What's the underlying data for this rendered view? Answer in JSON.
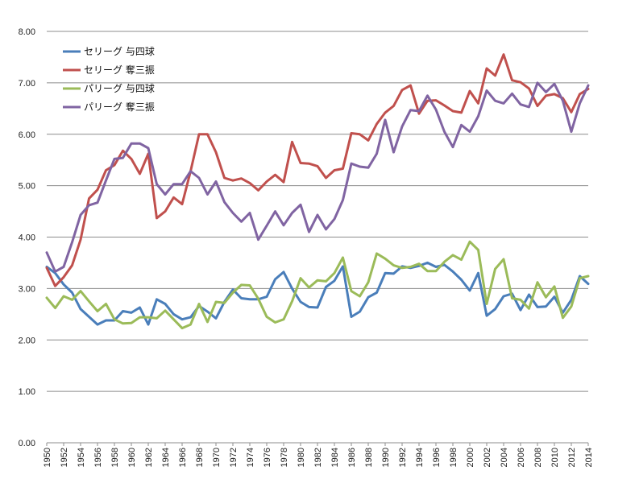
{
  "chart_data": {
    "type": "line",
    "title": "",
    "xlabel": "",
    "ylabel": "",
    "ylim": [
      0,
      8
    ],
    "y_ticks": [
      "0.00",
      "1.00",
      "2.00",
      "3.00",
      "4.00",
      "5.00",
      "6.00",
      "7.00",
      "8.00"
    ],
    "x": [
      1950,
      1951,
      1952,
      1953,
      1954,
      1955,
      1956,
      1957,
      1958,
      1959,
      1960,
      1961,
      1962,
      1963,
      1964,
      1965,
      1966,
      1967,
      1968,
      1969,
      1970,
      1971,
      1972,
      1973,
      1974,
      1975,
      1976,
      1977,
      1978,
      1979,
      1980,
      1981,
      1982,
      1983,
      1984,
      1985,
      1986,
      1987,
      1988,
      1989,
      1990,
      1991,
      1992,
      1993,
      1994,
      1995,
      1996,
      1997,
      1998,
      1999,
      2000,
      2001,
      2002,
      2003,
      2004,
      2005,
      2006,
      2007,
      2008,
      2009,
      2010,
      2011,
      2012,
      2013,
      2014
    ],
    "x_tick_labels": [
      "1950",
      "1952",
      "1954",
      "1956",
      "1958",
      "1960",
      "1962",
      "1964",
      "1966",
      "1968",
      "1970",
      "1972",
      "1974",
      "1976",
      "1978",
      "1980",
      "1982",
      "1984",
      "1986",
      "1988",
      "1990",
      "1992",
      "1994",
      "1996",
      "1998",
      "2000",
      "2002",
      "2004",
      "2006",
      "2008",
      "2010",
      "2012",
      "2014"
    ],
    "grid": "horizontal",
    "legend_position": "top-left",
    "series": [
      {
        "name": "セリーグ 与四球",
        "color": "#4a7eba",
        "values": [
          3.42,
          3.3,
          3.08,
          2.92,
          2.6,
          2.45,
          2.3,
          2.38,
          2.38,
          2.56,
          2.53,
          2.63,
          2.3,
          2.79,
          2.7,
          2.5,
          2.4,
          2.44,
          2.66,
          2.55,
          2.42,
          2.74,
          2.98,
          2.81,
          2.79,
          2.79,
          2.84,
          3.18,
          3.32,
          3.0,
          2.74,
          2.64,
          2.63,
          3.03,
          3.15,
          3.43,
          2.45,
          2.55,
          2.83,
          2.92,
          3.3,
          3.29,
          3.43,
          3.4,
          3.44,
          3.5,
          3.42,
          3.46,
          3.33,
          3.17,
          2.96,
          3.3,
          2.47,
          2.6,
          2.85,
          2.9,
          2.58,
          2.88,
          2.64,
          2.65,
          2.84,
          2.53,
          2.78,
          3.24,
          3.09
        ]
      },
      {
        "name": "セリーグ 奪三振",
        "color": "#c0504d",
        "values": [
          3.4,
          3.05,
          3.22,
          3.45,
          3.95,
          4.75,
          4.92,
          5.3,
          5.4,
          5.68,
          5.52,
          5.23,
          5.62,
          4.37,
          4.5,
          4.77,
          4.64,
          5.28,
          6.0,
          6.0,
          5.65,
          5.15,
          5.1,
          5.14,
          5.05,
          4.91,
          5.08,
          5.21,
          5.07,
          5.85,
          5.44,
          5.43,
          5.38,
          5.15,
          5.3,
          5.33,
          6.02,
          6.0,
          5.88,
          6.2,
          6.42,
          6.55,
          6.86,
          6.95,
          6.4,
          6.65,
          6.66,
          6.56,
          6.45,
          6.42,
          6.84,
          6.6,
          7.28,
          7.14,
          7.55,
          7.05,
          7.01,
          6.89,
          6.55,
          6.75,
          6.78,
          6.7,
          6.43,
          6.78,
          6.88
        ]
      },
      {
        "name": "パリーグ 与四球",
        "color": "#9bbb59",
        "values": [
          2.82,
          2.62,
          2.85,
          2.78,
          2.95,
          2.75,
          2.56,
          2.7,
          2.4,
          2.32,
          2.33,
          2.44,
          2.44,
          2.42,
          2.57,
          2.4,
          2.23,
          2.3,
          2.7,
          2.35,
          2.74,
          2.72,
          2.92,
          3.07,
          3.06,
          2.8,
          2.45,
          2.34,
          2.4,
          2.75,
          3.2,
          3.02,
          3.16,
          3.14,
          3.3,
          3.6,
          2.95,
          2.85,
          3.12,
          3.68,
          3.58,
          3.45,
          3.4,
          3.42,
          3.48,
          3.34,
          3.34,
          3.52,
          3.65,
          3.56,
          3.91,
          3.75,
          2.7,
          3.38,
          3.57,
          2.81,
          2.78,
          2.61,
          3.12,
          2.83,
          3.04,
          2.43,
          2.65,
          3.2,
          3.24
        ]
      },
      {
        "name": "パリーグ 奪三振",
        "color": "#8064a2",
        "values": [
          3.7,
          3.33,
          3.42,
          3.9,
          4.43,
          4.62,
          4.67,
          5.1,
          5.52,
          5.54,
          5.82,
          5.82,
          5.73,
          5.03,
          4.83,
          5.03,
          5.03,
          5.28,
          5.15,
          4.83,
          5.08,
          4.68,
          4.47,
          4.3,
          4.47,
          3.95,
          4.22,
          4.5,
          4.23,
          4.47,
          4.63,
          4.1,
          4.43,
          4.15,
          4.35,
          4.72,
          5.43,
          5.37,
          5.35,
          5.62,
          6.28,
          5.65,
          6.15,
          6.47,
          6.45,
          6.75,
          6.48,
          6.05,
          5.75,
          6.18,
          6.05,
          6.35,
          6.85,
          6.65,
          6.6,
          6.79,
          6.58,
          6.53,
          7.0,
          6.82,
          6.98,
          6.65,
          6.05,
          6.6,
          6.95
        ]
      }
    ]
  }
}
